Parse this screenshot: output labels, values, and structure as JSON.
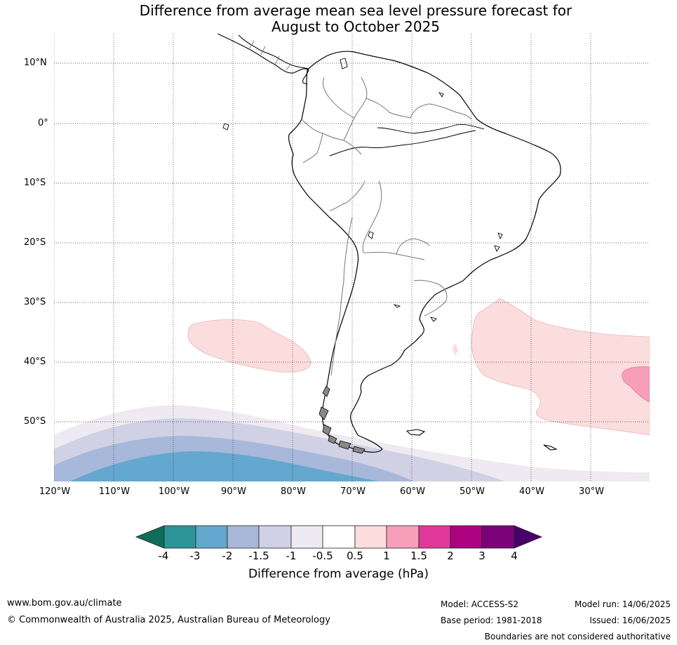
{
  "title_line1": "Difference from average mean sea level pressure forecast for",
  "title_line2": "August to October 2025",
  "map": {
    "lat_labels": [
      "10°N",
      "0°",
      "10°S",
      "20°S",
      "30°S",
      "40°S",
      "50°S"
    ],
    "lon_labels": [
      "120°W",
      "110°W",
      "100°W",
      "90°W",
      "80°W",
      "70°W",
      "60°W",
      "50°W",
      "40°W",
      "30°W"
    ],
    "grid": true,
    "anomaly_colors": {
      "minus_4": "#0f6e5a",
      "minus_3": "#2b9599",
      "minus_2": "#64a7cf",
      "minus_1_5": "#a7b8da",
      "minus_1": "#d1d1e5",
      "minus_0_5": "#efeaf1",
      "zero": "#ffffff",
      "plus_0_5": "#fcdddd",
      "plus_1": "#f79fb8",
      "plus_1_5": "#e0399b",
      "plus_2": "#ae0380",
      "plus_3": "#7b0379",
      "plus_4": "#48006a"
    }
  },
  "colorbar": {
    "ticks": [
      "-4",
      "-3",
      "-2",
      "-1.5",
      "-1",
      "-0.5",
      "0.5",
      "1",
      "1.5",
      "2",
      "3",
      "4"
    ],
    "label": "Difference from average (hPa)"
  },
  "footer": {
    "website": "www.bom.gov.au/climate",
    "copyright": "© Commonwealth of Australia 2025, Australian Bureau of Meteorology",
    "model": "Model: ACCESS-S2",
    "base_period": "Base period: 1981-2018",
    "model_run": "Model run: 14/06/2025",
    "issued": "Issued: 16/06/2025",
    "disclaimer": "Boundaries are not considered authoritative"
  }
}
